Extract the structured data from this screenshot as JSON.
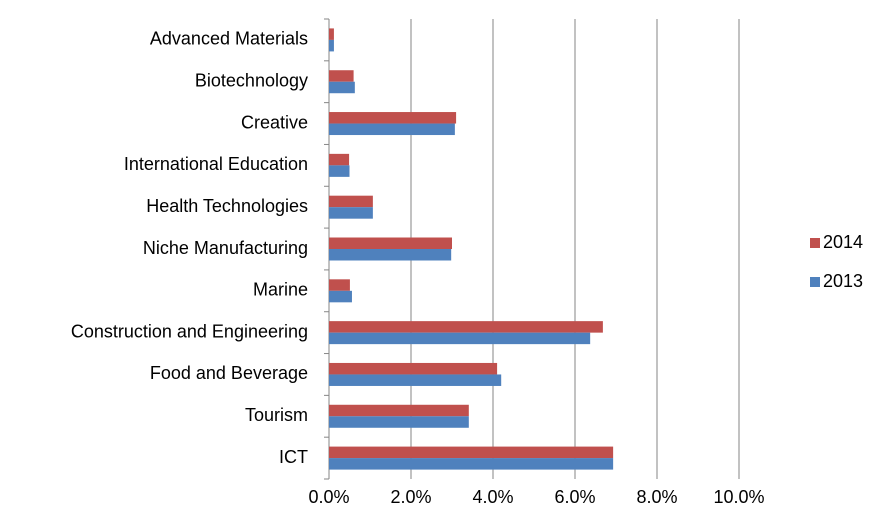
{
  "chart_data": {
    "type": "bar",
    "orientation": "horizontal",
    "categories": [
      "Advanced Materials",
      "Biotechnology",
      "Creative",
      "International Education",
      "Health Technologies",
      "Niche Manufacturing",
      "Marine",
      "Construction and Engineering",
      "Food and Beverage",
      "Tourism",
      "ICT"
    ],
    "series": [
      {
        "name": "2014",
        "color": "#c0504d",
        "values": [
          0.12,
          0.6,
          3.1,
          0.49,
          1.07,
          3.0,
          0.51,
          6.68,
          4.1,
          3.41,
          6.93
        ]
      },
      {
        "name": "2013",
        "color": "#4f81bd",
        "values": [
          0.12,
          0.63,
          3.07,
          0.5,
          1.07,
          2.98,
          0.56,
          6.37,
          4.2,
          3.41,
          6.93
        ]
      }
    ],
    "xlim": [
      0,
      10
    ],
    "xticks": [
      {
        "value": 0,
        "label": "0.0%"
      },
      {
        "value": 2,
        "label": "2.0%"
      },
      {
        "value": 4,
        "label": "4.0%"
      },
      {
        "value": 6,
        "label": "6.0%"
      },
      {
        "value": 8,
        "label": "8.0%"
      },
      {
        "value": 10,
        "label": "10.0%"
      }
    ],
    "grid": true,
    "legend": "right"
  }
}
